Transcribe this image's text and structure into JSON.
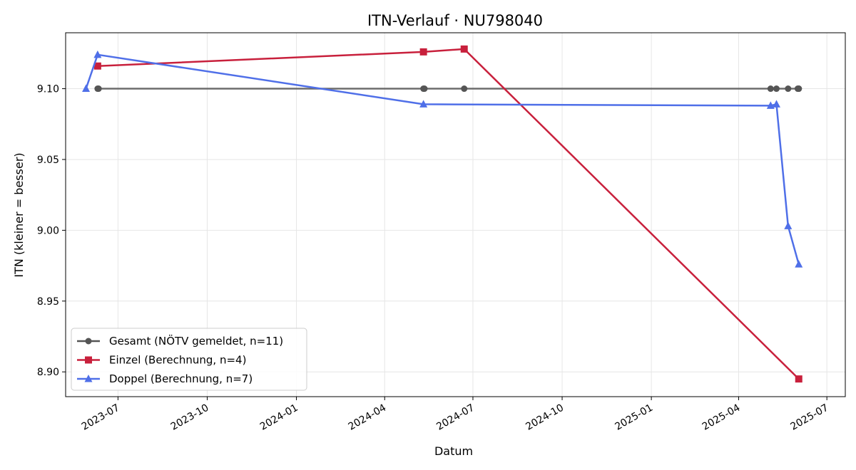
{
  "chart_data": {
    "type": "line",
    "title": "ITN-Verlauf · NU798040",
    "xlabel": "Datum",
    "ylabel": "ITN  (kleiner = besser)",
    "x_type": "date",
    "xlim": [
      "2023-05-08",
      "2025-07-20"
    ],
    "ylim": [
      8.8825,
      9.1395
    ],
    "yticks": [
      8.9,
      8.95,
      9.0,
      9.05,
      9.1
    ],
    "ytick_labels": [
      "8.90",
      "8.95",
      "9.00",
      "9.05",
      "9.10"
    ],
    "xticks": [
      "2023-07-01",
      "2023-10-01",
      "2024-01-01",
      "2024-04-01",
      "2024-07-01",
      "2024-10-01",
      "2025-01-01",
      "2025-04-01",
      "2025-07-01"
    ],
    "xtick_labels": [
      "2023-07",
      "2023-10",
      "2024-01",
      "2024-04",
      "2024-07",
      "2024-10",
      "2025-01",
      "2025-04",
      "2025-07"
    ],
    "grid": true,
    "legend_position": "lower-left",
    "series": [
      {
        "name": "Gesamt (NÖTV gemeldet, n=11)",
        "color": "#555555",
        "marker": "circle",
        "points": [
          {
            "x": "2023-06-10",
            "y": 9.1
          },
          {
            "x": "2023-06-11",
            "y": 9.1
          },
          {
            "x": "2024-05-11",
            "y": 9.1
          },
          {
            "x": "2024-05-12",
            "y": 9.1
          },
          {
            "x": "2024-06-22",
            "y": 9.1
          },
          {
            "x": "2025-05-04",
            "y": 9.1
          },
          {
            "x": "2025-05-10",
            "y": 9.1
          },
          {
            "x": "2025-05-22",
            "y": 9.1
          },
          {
            "x": "2025-06-01",
            "y": 9.1
          },
          {
            "x": "2025-06-02",
            "y": 9.1
          },
          {
            "x": "2025-06-02",
            "y": 9.1
          }
        ]
      },
      {
        "name": "Einzel (Berechnung, n=4)",
        "color": "#c8203c",
        "marker": "square",
        "points": [
          {
            "x": "2023-06-10",
            "y": 9.116
          },
          {
            "x": "2024-05-11",
            "y": 9.126
          },
          {
            "x": "2024-06-22",
            "y": 9.128
          },
          {
            "x": "2025-06-02",
            "y": 8.895
          }
        ]
      },
      {
        "name": "Doppel (Berechnung, n=7)",
        "color": "#4f6fe8",
        "marker": "triangle",
        "points": [
          {
            "x": "2023-05-29",
            "y": 9.1
          },
          {
            "x": "2023-06-10",
            "y": 9.124
          },
          {
            "x": "2024-05-11",
            "y": 9.089
          },
          {
            "x": "2025-05-04",
            "y": 9.088
          },
          {
            "x": "2025-05-10",
            "y": 9.089
          },
          {
            "x": "2025-05-22",
            "y": 9.003
          },
          {
            "x": "2025-06-02",
            "y": 8.976
          }
        ]
      }
    ]
  }
}
